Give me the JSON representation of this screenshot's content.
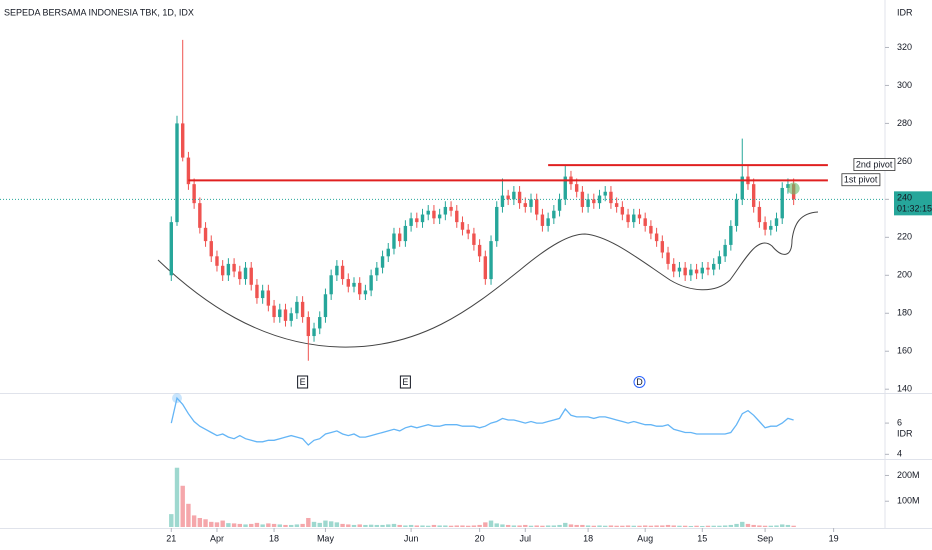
{
  "chart_data": [
    {
      "type": "candlestick",
      "title": "SEPEDA BERSAMA INDONESIA TBK, 1D, IDX",
      "axis_label": "IDR",
      "up_color": "#26a69a",
      "down_color": "#ef5350",
      "open": [
        200,
        228,
        280,
        262,
        248,
        238,
        225,
        218,
        210,
        205,
        200,
        206,
        202,
        198,
        204,
        195,
        188,
        192,
        184,
        178,
        182,
        176,
        180,
        186,
        178,
        168,
        172,
        178,
        190,
        200,
        205,
        198,
        194,
        196,
        190,
        192,
        200,
        204,
        210,
        214,
        222,
        218,
        226,
        230,
        228,
        232,
        234,
        230,
        232,
        236,
        234,
        228,
        224,
        222,
        216,
        210,
        198,
        218,
        236,
        242,
        240,
        244,
        238,
        236,
        240,
        232,
        226,
        230,
        234,
        240,
        252,
        248,
        244,
        236,
        240,
        238,
        242,
        244,
        238,
        236,
        232,
        228,
        232,
        230,
        226,
        222,
        218,
        212,
        206,
        202,
        204,
        200,
        203,
        201,
        204,
        203,
        206,
        210,
        216,
        226,
        240,
        252,
        248,
        236,
        228,
        224,
        226,
        230,
        246,
        248
      ],
      "high": [
        231,
        284,
        324,
        265,
        251,
        241,
        228,
        221,
        213,
        208,
        209,
        209,
        205,
        207,
        207,
        198,
        195,
        195,
        187,
        185,
        185,
        183,
        189,
        189,
        181,
        175,
        181,
        193,
        203,
        208,
        208,
        201,
        199,
        199,
        195,
        203,
        207,
        213,
        217,
        225,
        225,
        229,
        233,
        233,
        235,
        237,
        237,
        235,
        239,
        239,
        237,
        231,
        227,
        225,
        219,
        213,
        221,
        239,
        251,
        245,
        247,
        247,
        241,
        243,
        243,
        235,
        233,
        237,
        243,
        258,
        255,
        251,
        247,
        243,
        243,
        245,
        247,
        247,
        241,
        239,
        235,
        235,
        235,
        233,
        229,
        225,
        221,
        215,
        209,
        207,
        207,
        206,
        206,
        207,
        207,
        209,
        213,
        219,
        229,
        243,
        272,
        258,
        251,
        239,
        231,
        229,
        233,
        249,
        251,
        251
      ],
      "low": [
        197,
        226,
        260,
        245,
        235,
        222,
        215,
        207,
        202,
        197,
        197,
        199,
        195,
        195,
        192,
        185,
        185,
        181,
        175,
        175,
        173,
        173,
        177,
        175,
        155,
        165,
        169,
        175,
        187,
        197,
        195,
        191,
        191,
        187,
        187,
        189,
        197,
        201,
        207,
        211,
        215,
        215,
        223,
        225,
        225,
        229,
        227,
        227,
        229,
        231,
        225,
        221,
        219,
        213,
        207,
        195,
        195,
        215,
        233,
        237,
        237,
        235,
        233,
        233,
        229,
        223,
        223,
        227,
        231,
        237,
        245,
        241,
        233,
        233,
        235,
        235,
        239,
        235,
        233,
        229,
        225,
        225,
        227,
        223,
        219,
        215,
        209,
        203,
        199,
        199,
        197,
        197,
        198,
        198,
        200,
        200,
        203,
        207,
        213,
        223,
        237,
        245,
        233,
        225,
        221,
        221,
        223,
        227,
        243,
        237
      ],
      "close": [
        228,
        280,
        262,
        248,
        238,
        225,
        218,
        210,
        205,
        200,
        206,
        202,
        198,
        204,
        195,
        188,
        192,
        184,
        178,
        182,
        176,
        180,
        186,
        178,
        168,
        172,
        178,
        190,
        200,
        205,
        198,
        194,
        196,
        190,
        192,
        200,
        204,
        210,
        214,
        222,
        218,
        226,
        230,
        228,
        232,
        234,
        230,
        232,
        236,
        234,
        228,
        224,
        222,
        216,
        210,
        198,
        218,
        236,
        242,
        240,
        244,
        238,
        236,
        240,
        232,
        226,
        230,
        234,
        240,
        252,
        248,
        244,
        236,
        240,
        238,
        242,
        244,
        238,
        236,
        232,
        228,
        232,
        230,
        226,
        222,
        218,
        212,
        206,
        202,
        204,
        200,
        203,
        201,
        204,
        203,
        206,
        210,
        216,
        226,
        240,
        252,
        248,
        236,
        228,
        224,
        226,
        230,
        246,
        248,
        240
      ],
      "xlim": [
        -30,
        125
      ],
      "xticks": [
        {
          "value": 0,
          "label": "21"
        },
        {
          "value": 8,
          "label": "Apr"
        },
        {
          "value": 18,
          "label": "18"
        },
        {
          "value": 27,
          "label": "May"
        },
        {
          "value": 42,
          "label": "Jun"
        },
        {
          "value": 54,
          "label": "20"
        },
        {
          "value": 62,
          "label": "Jul"
        },
        {
          "value": 73,
          "label": "18"
        },
        {
          "value": 83,
          "label": "Aug"
        },
        {
          "value": 93,
          "label": "15"
        },
        {
          "value": 104,
          "label": "Sep"
        },
        {
          "value": 116,
          "label": "19"
        }
      ],
      "ylim": [
        138,
        345
      ],
      "yticks": [
        140,
        160,
        180,
        200,
        220,
        240,
        260,
        280,
        300,
        320
      ],
      "last_price": 240,
      "countdown": "01:32:15",
      "pivot_color": "#e02020",
      "pivots": [
        {
          "label": "2nd pivot",
          "value": 258,
          "x_start": 66,
          "x_end": 115
        },
        {
          "label": "1st pivot",
          "value": 250,
          "x_start": 3,
          "x_end": 115
        }
      ],
      "events": [
        {
          "x": 23,
          "label": "E"
        },
        {
          "x": 41,
          "label": "E"
        },
        {
          "x": 82,
          "label": "D"
        }
      ]
    },
    {
      "type": "line",
      "axis_label": "IDR",
      "color": "#64b5f6",
      "values": [
        6.0,
        7.6,
        7.2,
        6.6,
        6.1,
        5.8,
        5.6,
        5.4,
        5.2,
        5.3,
        5.1,
        5.0,
        5.2,
        5.0,
        4.9,
        4.8,
        4.8,
        4.9,
        4.9,
        5.0,
        5.1,
        5.2,
        5.1,
        5.0,
        4.6,
        4.9,
        5.0,
        5.3,
        5.4,
        5.5,
        5.3,
        5.2,
        5.3,
        5.1,
        5.1,
        5.2,
        5.3,
        5.4,
        5.5,
        5.6,
        5.5,
        5.7,
        5.8,
        5.7,
        5.8,
        5.9,
        5.8,
        5.8,
        5.9,
        5.9,
        5.9,
        5.8,
        5.8,
        5.8,
        5.7,
        5.8,
        6.0,
        6.1,
        6.3,
        6.2,
        6.2,
        6.1,
        6.0,
        6.1,
        6.0,
        6.0,
        6.1,
        6.2,
        6.3,
        6.9,
        6.5,
        6.4,
        6.4,
        6.4,
        6.3,
        6.4,
        6.4,
        6.3,
        6.2,
        6.1,
        6.0,
        6.1,
        6.0,
        5.9,
        5.9,
        5.8,
        5.8,
        5.9,
        5.6,
        5.5,
        5.4,
        5.4,
        5.3,
        5.3,
        5.3,
        5.3,
        5.3,
        5.3,
        5.4,
        5.9,
        6.6,
        6.8,
        6.5,
        6.1,
        5.7,
        5.8,
        5.8,
        6.0,
        6.3,
        6.2
      ],
      "ylim": [
        3.7,
        7.8
      ],
      "yticks": [
        4,
        6
      ]
    },
    {
      "type": "bar",
      "up_color": "#9ed8cf",
      "down_color": "#f5a7ab",
      "values": [
        50,
        230,
        160,
        90,
        45,
        35,
        30,
        20,
        18,
        25,
        15,
        14,
        12,
        10,
        12,
        16,
        10,
        14,
        12,
        10,
        8,
        8,
        10,
        12,
        35,
        20,
        16,
        25,
        22,
        18,
        12,
        10,
        8,
        10,
        8,
        9,
        8,
        8,
        10,
        12,
        8,
        6,
        8,
        6,
        6,
        5,
        8,
        6,
        6,
        5,
        6,
        6,
        5,
        6,
        8,
        18,
        25,
        14,
        10,
        8,
        6,
        6,
        8,
        5,
        6,
        5,
        6,
        6,
        8,
        16,
        10,
        8,
        8,
        6,
        5,
        6,
        5,
        6,
        5,
        5,
        6,
        5,
        5,
        6,
        5,
        6,
        6,
        8,
        6,
        5,
        5,
        4,
        5,
        4,
        5,
        5,
        5,
        6,
        8,
        12,
        20,
        12,
        8,
        6,
        5,
        5,
        6,
        10,
        8,
        5
      ],
      "ylim": [
        0,
        260
      ],
      "yticks": [
        {
          "value": 100,
          "label": "100M"
        },
        {
          "value": 200,
          "label": "200M"
        }
      ]
    }
  ]
}
